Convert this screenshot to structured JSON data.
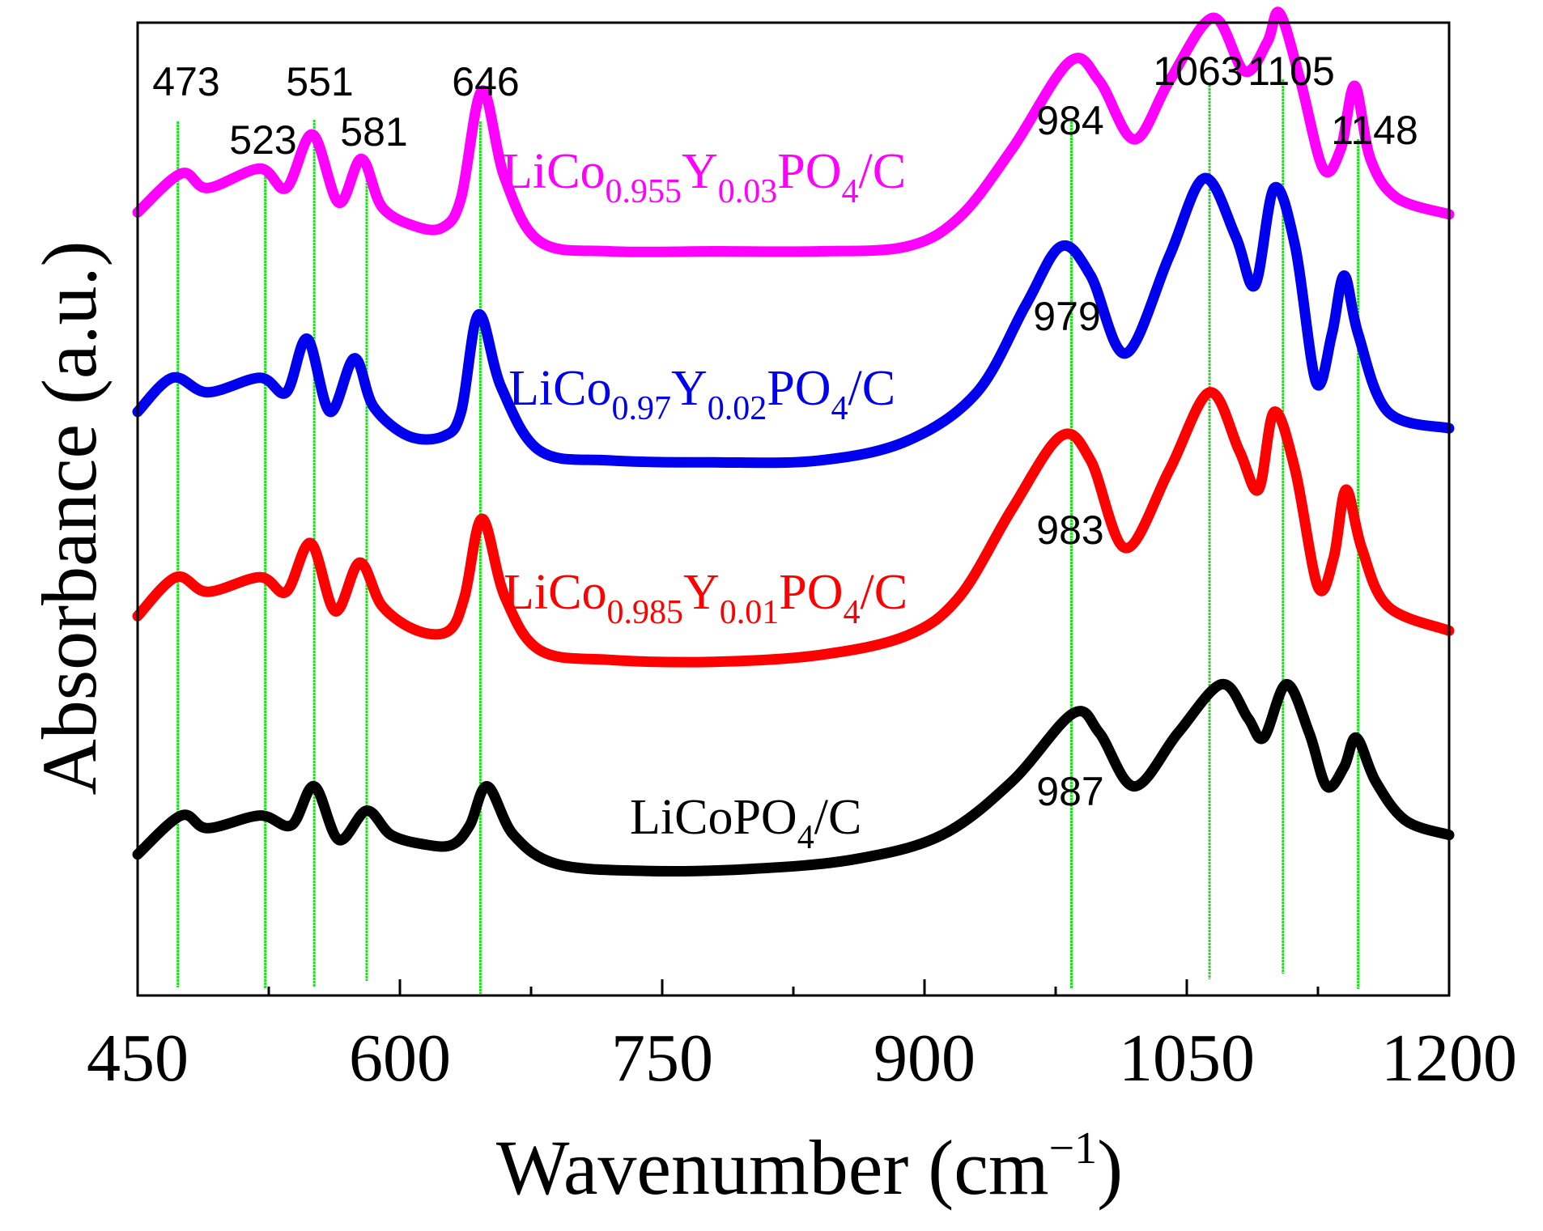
{
  "chart_data": {
    "type": "line",
    "title": "",
    "xlabel": "Wavenumber (cm",
    "xlabel_sup": "−1",
    "xlabel_close": ")",
    "ylabel": "Absorbance (a.u.)",
    "xlim": [
      450,
      1200
    ],
    "x_ticks": [
      450,
      600,
      750,
      900,
      1050,
      1200
    ],
    "x_tick_labels": [
      "450",
      "600",
      "750",
      "900",
      "1050",
      "1200"
    ],
    "x_minor_ticks": [
      525,
      675,
      825,
      975,
      1125
    ],
    "y_ticks_shown": false,
    "reference_lines": [
      {
        "x": 473,
        "label": "473"
      },
      {
        "x": 523,
        "label": "523"
      },
      {
        "x": 551,
        "label": "551"
      },
      {
        "x": 581,
        "label": "581"
      },
      {
        "x": 646,
        "label": "646"
      },
      {
        "x": 984,
        "label": "984"
      },
      {
        "x": 1063,
        "label": "1063"
      },
      {
        "x": 1105,
        "label": "1105"
      },
      {
        "x": 1148,
        "label": "1148"
      }
    ],
    "series": [
      {
        "name": "LiCo0.955Y0.03PO4/C",
        "color": "#ff00ff",
        "label_parts": [
          [
            "LiCo",
            ""
          ],
          [
            "0.955",
            "sub"
          ],
          [
            "Y",
            ""
          ],
          [
            "0.03",
            "sub"
          ],
          [
            "PO",
            ""
          ],
          [
            "4",
            "sub"
          ],
          [
            "/C",
            ""
          ]
        ],
        "peak_annotation": "",
        "points": [
          [
            450,
            0.805
          ],
          [
            475,
            0.845
          ],
          [
            490,
            0.83
          ],
          [
            520,
            0.85
          ],
          [
            535,
            0.83
          ],
          [
            550,
            0.885
          ],
          [
            565,
            0.815
          ],
          [
            578,
            0.86
          ],
          [
            590,
            0.81
          ],
          [
            610,
            0.79
          ],
          [
            625,
            0.79
          ],
          [
            635,
            0.82
          ],
          [
            647,
            0.93
          ],
          [
            660,
            0.84
          ],
          [
            680,
            0.775
          ],
          [
            720,
            0.765
          ],
          [
            780,
            0.765
          ],
          [
            840,
            0.765
          ],
          [
            890,
            0.77
          ],
          [
            920,
            0.8
          ],
          [
            950,
            0.87
          ],
          [
            983,
            0.96
          ],
          [
            1000,
            0.94
          ],
          [
            1020,
            0.88
          ],
          [
            1040,
            0.94
          ],
          [
            1065,
            1.005
          ],
          [
            1083,
            0.95
          ],
          [
            1096,
            0.98
          ],
          [
            1103,
            1.01
          ],
          [
            1115,
            0.94
          ],
          [
            1128,
            0.85
          ],
          [
            1138,
            0.87
          ],
          [
            1146,
            0.935
          ],
          [
            1155,
            0.86
          ],
          [
            1170,
            0.82
          ],
          [
            1200,
            0.803
          ]
        ]
      },
      {
        "name": "LiCo0.97Y0.02PO4/C",
        "color": "#0000ee",
        "label_parts": [
          [
            "LiCo",
            ""
          ],
          [
            "0.97",
            "sub"
          ],
          [
            "Y",
            ""
          ],
          [
            "0.02",
            "sub"
          ],
          [
            "PO",
            ""
          ],
          [
            "4",
            "sub"
          ],
          [
            "/C",
            ""
          ]
        ],
        "peak_annotation": "979",
        "points": [
          [
            450,
            0.6
          ],
          [
            470,
            0.635
          ],
          [
            490,
            0.62
          ],
          [
            520,
            0.635
          ],
          [
            535,
            0.62
          ],
          [
            547,
            0.675
          ],
          [
            560,
            0.6
          ],
          [
            574,
            0.655
          ],
          [
            585,
            0.605
          ],
          [
            605,
            0.575
          ],
          [
            625,
            0.575
          ],
          [
            635,
            0.6
          ],
          [
            645,
            0.7
          ],
          [
            658,
            0.625
          ],
          [
            680,
            0.56
          ],
          [
            720,
            0.55
          ],
          [
            780,
            0.548
          ],
          [
            840,
            0.55
          ],
          [
            890,
            0.57
          ],
          [
            930,
            0.62
          ],
          [
            958,
            0.71
          ],
          [
            978,
            0.77
          ],
          [
            995,
            0.74
          ],
          [
            1015,
            0.66
          ],
          [
            1040,
            0.76
          ],
          [
            1060,
            0.84
          ],
          [
            1078,
            0.78
          ],
          [
            1089,
            0.73
          ],
          [
            1100,
            0.83
          ],
          [
            1112,
            0.77
          ],
          [
            1124,
            0.63
          ],
          [
            1133,
            0.68
          ],
          [
            1140,
            0.74
          ],
          [
            1148,
            0.68
          ],
          [
            1165,
            0.6
          ],
          [
            1200,
            0.583
          ]
        ]
      },
      {
        "name": "LiCo0.985Y0.01PO4/C",
        "color": "#ff0000",
        "label_parts": [
          [
            "LiCo",
            ""
          ],
          [
            "0.985",
            "sub"
          ],
          [
            "Y",
            ""
          ],
          [
            "0.01",
            "sub"
          ],
          [
            "PO",
            ""
          ],
          [
            "4",
            "sub"
          ],
          [
            "/C",
            ""
          ]
        ],
        "peak_annotation": "983",
        "points": [
          [
            450,
            0.39
          ],
          [
            472,
            0.43
          ],
          [
            490,
            0.415
          ],
          [
            520,
            0.43
          ],
          [
            535,
            0.415
          ],
          [
            549,
            0.465
          ],
          [
            563,
            0.395
          ],
          [
            577,
            0.445
          ],
          [
            590,
            0.4
          ],
          [
            610,
            0.375
          ],
          [
            628,
            0.375
          ],
          [
            637,
            0.41
          ],
          [
            647,
            0.49
          ],
          [
            660,
            0.41
          ],
          [
            680,
            0.355
          ],
          [
            720,
            0.345
          ],
          [
            780,
            0.343
          ],
          [
            840,
            0.35
          ],
          [
            890,
            0.37
          ],
          [
            920,
            0.41
          ],
          [
            950,
            0.5
          ],
          [
            978,
            0.575
          ],
          [
            995,
            0.55
          ],
          [
            1015,
            0.46
          ],
          [
            1040,
            0.54
          ],
          [
            1063,
            0.62
          ],
          [
            1080,
            0.56
          ],
          [
            1091,
            0.52
          ],
          [
            1100,
            0.6
          ],
          [
            1112,
            0.54
          ],
          [
            1125,
            0.42
          ],
          [
            1134,
            0.45
          ],
          [
            1141,
            0.52
          ],
          [
            1150,
            0.46
          ],
          [
            1165,
            0.4
          ],
          [
            1200,
            0.375
          ]
        ]
      },
      {
        "name": "LiCoPO4/C",
        "color": "#000000",
        "label_parts": [
          [
            "LiCoPO",
            ""
          ],
          [
            "4",
            "sub"
          ],
          [
            "/C",
            ""
          ]
        ],
        "peak_annotation": "987",
        "points": [
          [
            450,
            0.145
          ],
          [
            475,
            0.185
          ],
          [
            490,
            0.172
          ],
          [
            520,
            0.185
          ],
          [
            538,
            0.175
          ],
          [
            551,
            0.215
          ],
          [
            565,
            0.16
          ],
          [
            581,
            0.19
          ],
          [
            595,
            0.165
          ],
          [
            615,
            0.155
          ],
          [
            630,
            0.155
          ],
          [
            640,
            0.175
          ],
          [
            650,
            0.215
          ],
          [
            665,
            0.165
          ],
          [
            690,
            0.135
          ],
          [
            740,
            0.128
          ],
          [
            800,
            0.13
          ],
          [
            860,
            0.14
          ],
          [
            910,
            0.165
          ],
          [
            950,
            0.22
          ],
          [
            985,
            0.29
          ],
          [
            1000,
            0.27
          ],
          [
            1020,
            0.215
          ],
          [
            1045,
            0.27
          ],
          [
            1070,
            0.32
          ],
          [
            1085,
            0.285
          ],
          [
            1094,
            0.265
          ],
          [
            1107,
            0.32
          ],
          [
            1120,
            0.27
          ],
          [
            1130,
            0.215
          ],
          [
            1140,
            0.235
          ],
          [
            1147,
            0.265
          ],
          [
            1158,
            0.22
          ],
          [
            1175,
            0.18
          ],
          [
            1200,
            0.165
          ]
        ]
      }
    ]
  }
}
